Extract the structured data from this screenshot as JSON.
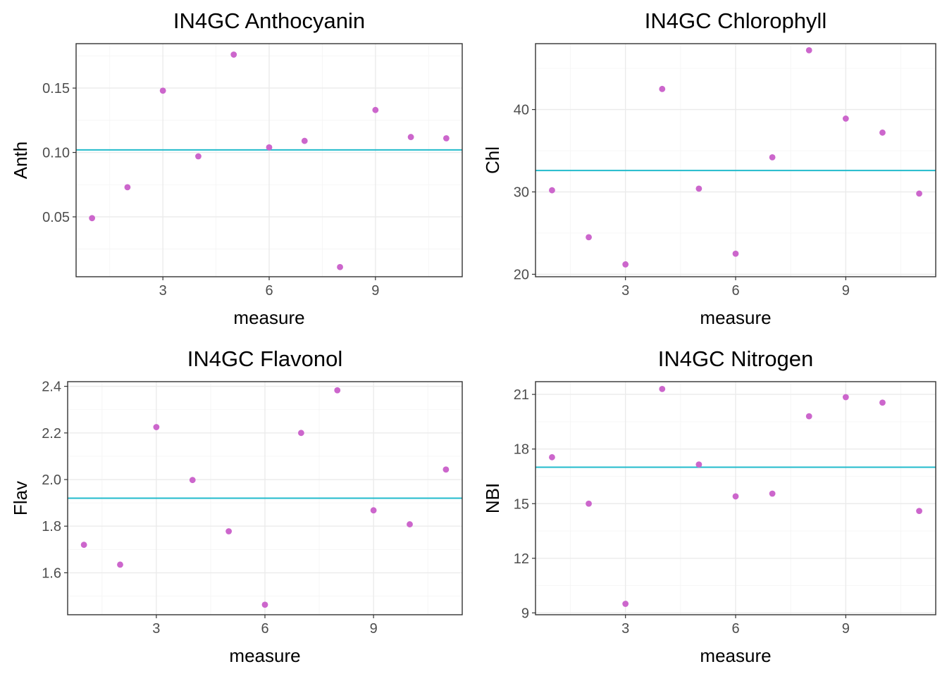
{
  "colors": {
    "point": "#CC66CC",
    "mean_line": "#22BBCC"
  },
  "chart_data": [
    {
      "type": "scatter",
      "title": "IN4GC Anthocyanin",
      "xlabel": "measure",
      "ylabel": "Anth",
      "xlim": [
        0.55,
        11.45
      ],
      "ylim": [
        0.0035,
        0.1845
      ],
      "xticks": [
        3,
        6,
        9
      ],
      "xtick_labels": [
        "3",
        "6",
        "9"
      ],
      "yticks": [
        0.05,
        0.1,
        0.15
      ],
      "ytick_labels": [
        "0.05",
        "0.10",
        "0.15"
      ],
      "x": [
        1,
        2,
        3,
        4,
        5,
        6,
        7,
        8,
        9,
        10,
        11
      ],
      "y": [
        0.049,
        0.073,
        0.148,
        0.097,
        0.176,
        0.104,
        0.109,
        0.011,
        0.133,
        0.112,
        0.111
      ],
      "hline": 0.102,
      "grid": true
    },
    {
      "type": "scatter",
      "title": "IN4GC Chlorophyll",
      "xlabel": "measure",
      "ylabel": "Chl",
      "xlim": [
        0.55,
        11.45
      ],
      "ylim": [
        19.7,
        48.0
      ],
      "xticks": [
        3,
        6,
        9
      ],
      "xtick_labels": [
        "3",
        "6",
        "9"
      ],
      "yticks": [
        20,
        30,
        40
      ],
      "ytick_labels": [
        "20",
        "30",
        "40"
      ],
      "x": [
        1,
        2,
        3,
        4,
        5,
        6,
        7,
        8,
        9,
        10,
        11
      ],
      "y": [
        30.2,
        24.5,
        21.2,
        42.5,
        30.4,
        22.5,
        34.2,
        47.2,
        38.9,
        37.2,
        29.8
      ],
      "hline": 32.6,
      "grid": true
    },
    {
      "type": "scatter",
      "title": "IN4GC Flavonol",
      "xlabel": "measure",
      "ylabel": "Flav",
      "xlim": [
        0.55,
        11.45
      ],
      "ylim": [
        1.42,
        2.42
      ],
      "xticks": [
        3,
        6,
        9
      ],
      "xtick_labels": [
        "3",
        "6",
        "9"
      ],
      "yticks": [
        1.6,
        1.8,
        2.0,
        2.2,
        2.4
      ],
      "ytick_labels": [
        "1.6",
        "1.8",
        "2.0",
        "2.2",
        "2.4"
      ],
      "x": [
        1,
        2,
        3,
        4,
        5,
        6,
        7,
        8,
        9,
        10,
        11
      ],
      "y": [
        1.72,
        1.635,
        2.225,
        1.998,
        1.778,
        1.463,
        2.2,
        2.383,
        1.868,
        1.808,
        2.043
      ],
      "hline": 1.92,
      "grid": true
    },
    {
      "type": "scatter",
      "title": "IN4GC Nitrogen",
      "xlabel": "measure",
      "ylabel": "NBI",
      "xlim": [
        0.55,
        11.45
      ],
      "ylim": [
        8.9,
        21.7
      ],
      "xticks": [
        3,
        6,
        9
      ],
      "xtick_labels": [
        "3",
        "6",
        "9"
      ],
      "yticks": [
        9,
        12,
        15,
        18,
        21
      ],
      "ytick_labels": [
        "9",
        "12",
        "15",
        "18",
        "21"
      ],
      "x": [
        1,
        2,
        3,
        4,
        5,
        6,
        7,
        8,
        9,
        10,
        11
      ],
      "y": [
        17.55,
        15.0,
        9.5,
        21.3,
        17.15,
        15.4,
        15.55,
        19.8,
        20.85,
        20.55,
        14.6
      ],
      "hline": 17.0,
      "grid": true
    }
  ]
}
